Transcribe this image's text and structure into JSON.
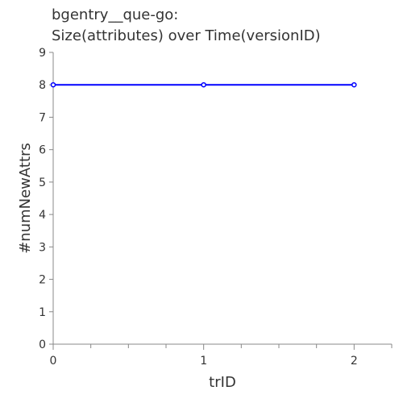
{
  "chart_data": {
    "type": "line",
    "title": [
      "bgentry__que-go:",
      "Size(attributes) over Time(versionID)"
    ],
    "xlabel": "trID",
    "ylabel": "#numNewAttrs",
    "x": [
      0,
      1,
      2
    ],
    "series": [
      {
        "values": [
          8,
          8,
          8
        ],
        "color": "#0000ff"
      }
    ],
    "xlim": [
      0,
      2.25
    ],
    "ylim": [
      0,
      9
    ],
    "xticks": [
      0,
      1,
      2
    ],
    "yticks": [
      0,
      1,
      2,
      3,
      4,
      5,
      6,
      7,
      8,
      9
    ],
    "grid": false,
    "legend": "none",
    "axis_color": "#888888",
    "text_color": "#333333"
  }
}
